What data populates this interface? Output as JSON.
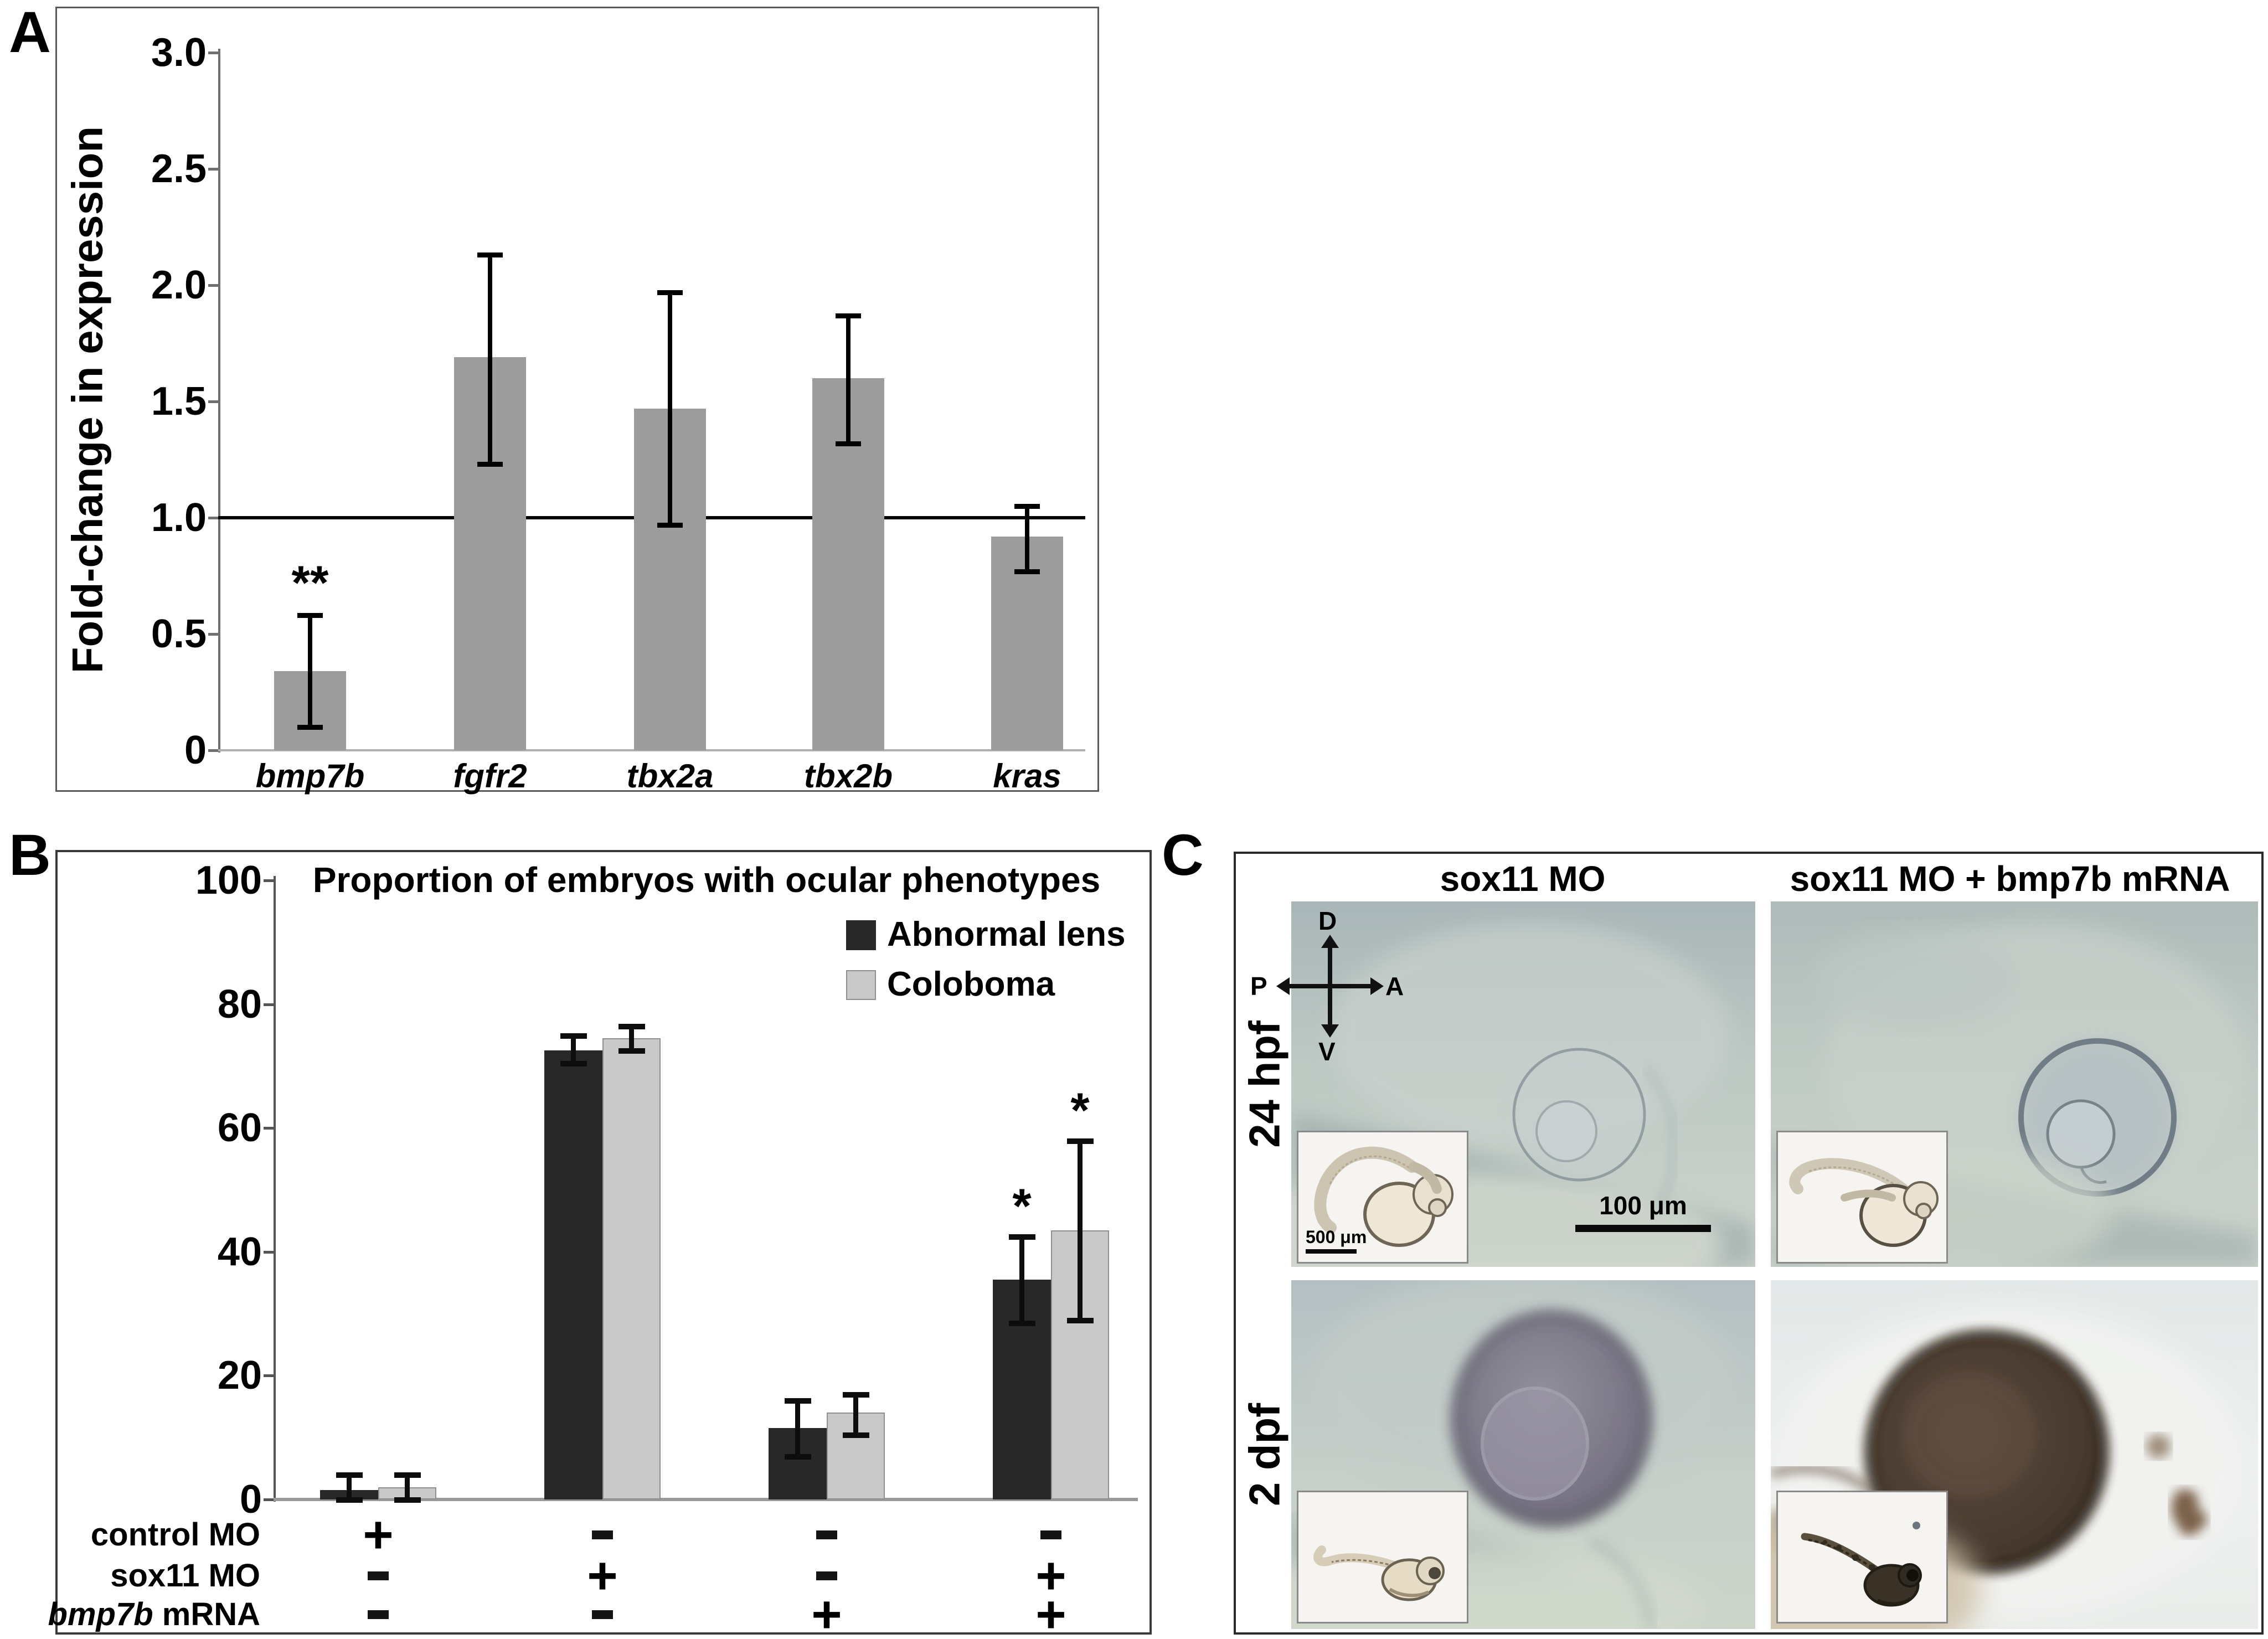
{
  "figure_labels": {
    "a": "A",
    "b": "B",
    "c": "C"
  },
  "chart_data": [
    {
      "type": "bar",
      "title": "",
      "ylabel": "Fold-change in expression",
      "categories": [
        "bmp7b",
        "fgfr2",
        "tbx2a",
        "tbx2b",
        "kras"
      ],
      "values": [
        0.34,
        1.69,
        1.47,
        1.6,
        0.92
      ],
      "error_low": [
        0.1,
        1.23,
        0.97,
        1.32,
        0.77
      ],
      "error_high": [
        0.58,
        2.13,
        1.97,
        1.87,
        1.05
      ],
      "significance": [
        "**",
        "",
        "",
        "",
        ""
      ],
      "reference_line": 1.0,
      "ylim": [
        0,
        3.0
      ],
      "ytick_values": [
        0,
        0.5,
        1.0,
        1.5,
        2.0,
        2.5,
        3.0
      ],
      "ytick_labels": [
        "0",
        "0.5",
        "1.0",
        "1.5",
        "2.0",
        "2.5",
        "3.0"
      ],
      "bar_color": "#9c9c9c",
      "grid": "off"
    },
    {
      "type": "grouped-bar",
      "title": "Proportion of embryos with ocular phenotypes",
      "ylabel": "",
      "ylim": [
        0,
        100
      ],
      "ytick_values": [
        0,
        20,
        40,
        60,
        80,
        100
      ],
      "ytick_labels": [
        "0",
        "20",
        "40",
        "60",
        "80",
        "100"
      ],
      "legend_position": "upper-right",
      "grid": "off",
      "series": [
        {
          "name": "Abnormal lens",
          "color": "#282828",
          "values": [
            1.5,
            72.5,
            11.5,
            35.5
          ],
          "error_low": [
            0,
            70.5,
            7,
            28.5
          ],
          "error_high": [
            4,
            75,
            16,
            42.5
          ],
          "significance": [
            "",
            "",
            "",
            "*"
          ]
        },
        {
          "name": "Coloboma",
          "color": "#c9c9c9",
          "values": [
            2,
            74.5,
            14,
            43.5
          ],
          "error_low": [
            0,
            72.5,
            10.5,
            29
          ],
          "error_high": [
            4,
            76.5,
            17,
            58
          ],
          "significance": [
            "",
            "",
            "",
            "*"
          ]
        }
      ],
      "condition_rows": [
        {
          "italic": "",
          "text": "control MO",
          "symbols": [
            "+",
            "-",
            "-",
            "-"
          ]
        },
        {
          "italic": "",
          "text": "sox11 MO",
          "symbols": [
            "-",
            "+",
            "-",
            "+"
          ]
        },
        {
          "italic": "bmp7b",
          "text": " mRNA",
          "symbols": [
            "-",
            "-",
            "+",
            "+"
          ]
        }
      ]
    }
  ],
  "panels": {
    "c": {
      "columns": [
        "sox11 MO",
        "sox11 MO + bmp7b mRNA"
      ],
      "rows": [
        "24 hpf",
        "2 dpf"
      ],
      "compass": {
        "up": "D",
        "down": "V",
        "left": "P",
        "right": "A"
      },
      "scale_bar_main": "100 μm",
      "scale_bar_inset": "500 μm"
    }
  }
}
